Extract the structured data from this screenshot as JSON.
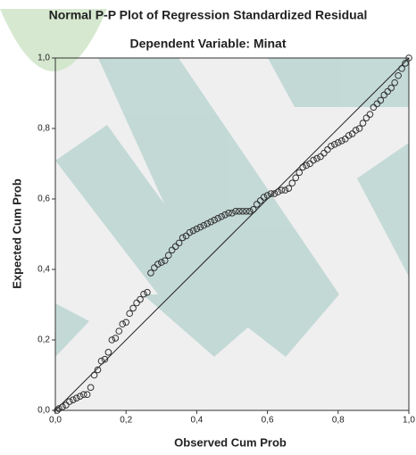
{
  "chart_data": {
    "type": "scatter",
    "title": "Normal P-P Plot of Regression Standardized Residual",
    "subtitle": "Dependent Variable: Minat",
    "x_label": "Observed Cum Prob",
    "y_label": "Expected Cum Prob",
    "x": [
      0.005,
      0.01,
      0.02,
      0.03,
      0.04,
      0.05,
      0.06,
      0.07,
      0.08,
      0.09,
      0.1,
      0.11,
      0.12,
      0.13,
      0.14,
      0.15,
      0.16,
      0.17,
      0.18,
      0.19,
      0.2,
      0.21,
      0.22,
      0.23,
      0.24,
      0.25,
      0.26,
      0.27,
      0.28,
      0.29,
      0.3,
      0.31,
      0.32,
      0.33,
      0.34,
      0.35,
      0.36,
      0.37,
      0.38,
      0.39,
      0.4,
      0.41,
      0.42,
      0.43,
      0.44,
      0.45,
      0.46,
      0.47,
      0.48,
      0.49,
      0.5,
      0.51,
      0.52,
      0.53,
      0.54,
      0.55,
      0.56,
      0.57,
      0.58,
      0.59,
      0.6,
      0.61,
      0.62,
      0.63,
      0.64,
      0.65,
      0.66,
      0.67,
      0.68,
      0.69,
      0.7,
      0.71,
      0.72,
      0.73,
      0.74,
      0.75,
      0.76,
      0.77,
      0.78,
      0.79,
      0.8,
      0.81,
      0.82,
      0.83,
      0.84,
      0.85,
      0.86,
      0.87,
      0.88,
      0.89,
      0.9,
      0.91,
      0.92,
      0.93,
      0.94,
      0.95,
      0.96,
      0.97,
      0.98,
      0.99,
      1.0
    ],
    "values": [
      0.0,
      0.005,
      0.01,
      0.015,
      0.025,
      0.03,
      0.035,
      0.04,
      0.045,
      0.045,
      0.065,
      0.1,
      0.115,
      0.14,
      0.145,
      0.165,
      0.2,
      0.205,
      0.225,
      0.245,
      0.25,
      0.275,
      0.29,
      0.305,
      0.315,
      0.33,
      0.335,
      0.39,
      0.405,
      0.415,
      0.42,
      0.425,
      0.44,
      0.455,
      0.465,
      0.475,
      0.49,
      0.495,
      0.505,
      0.51,
      0.515,
      0.52,
      0.525,
      0.53,
      0.535,
      0.54,
      0.545,
      0.55,
      0.555,
      0.56,
      0.56,
      0.565,
      0.565,
      0.565,
      0.565,
      0.565,
      0.57,
      0.585,
      0.595,
      0.605,
      0.61,
      0.615,
      0.615,
      0.62,
      0.625,
      0.625,
      0.63,
      0.645,
      0.66,
      0.675,
      0.69,
      0.695,
      0.7,
      0.71,
      0.715,
      0.72,
      0.73,
      0.74,
      0.75,
      0.755,
      0.76,
      0.765,
      0.77,
      0.78,
      0.785,
      0.795,
      0.8,
      0.815,
      0.83,
      0.84,
      0.86,
      0.87,
      0.88,
      0.895,
      0.905,
      0.915,
      0.93,
      0.95,
      0.97,
      0.985,
      1.0
    ],
    "xlim": [
      0,
      1
    ],
    "ylim": [
      0,
      1
    ],
    "xticks": [
      {
        "value": 0,
        "label": "0,0"
      },
      {
        "value": 0.2,
        "label": "0,2"
      },
      {
        "value": 0.4,
        "label": "0,4"
      },
      {
        "value": 0.6,
        "label": "0,6"
      },
      {
        "value": 0.8,
        "label": "0,8"
      },
      {
        "value": 1,
        "label": "1,0"
      }
    ],
    "yticks": [
      {
        "value": 0,
        "label": "0,0"
      },
      {
        "value": 0.2,
        "label": "0,2"
      },
      {
        "value": 0.4,
        "label": "0,4"
      },
      {
        "value": 0.6,
        "label": "0,6"
      },
      {
        "value": 0.8,
        "label": "0,8"
      },
      {
        "value": 1,
        "label": "1,0"
      }
    ],
    "reference_line": true
  }
}
